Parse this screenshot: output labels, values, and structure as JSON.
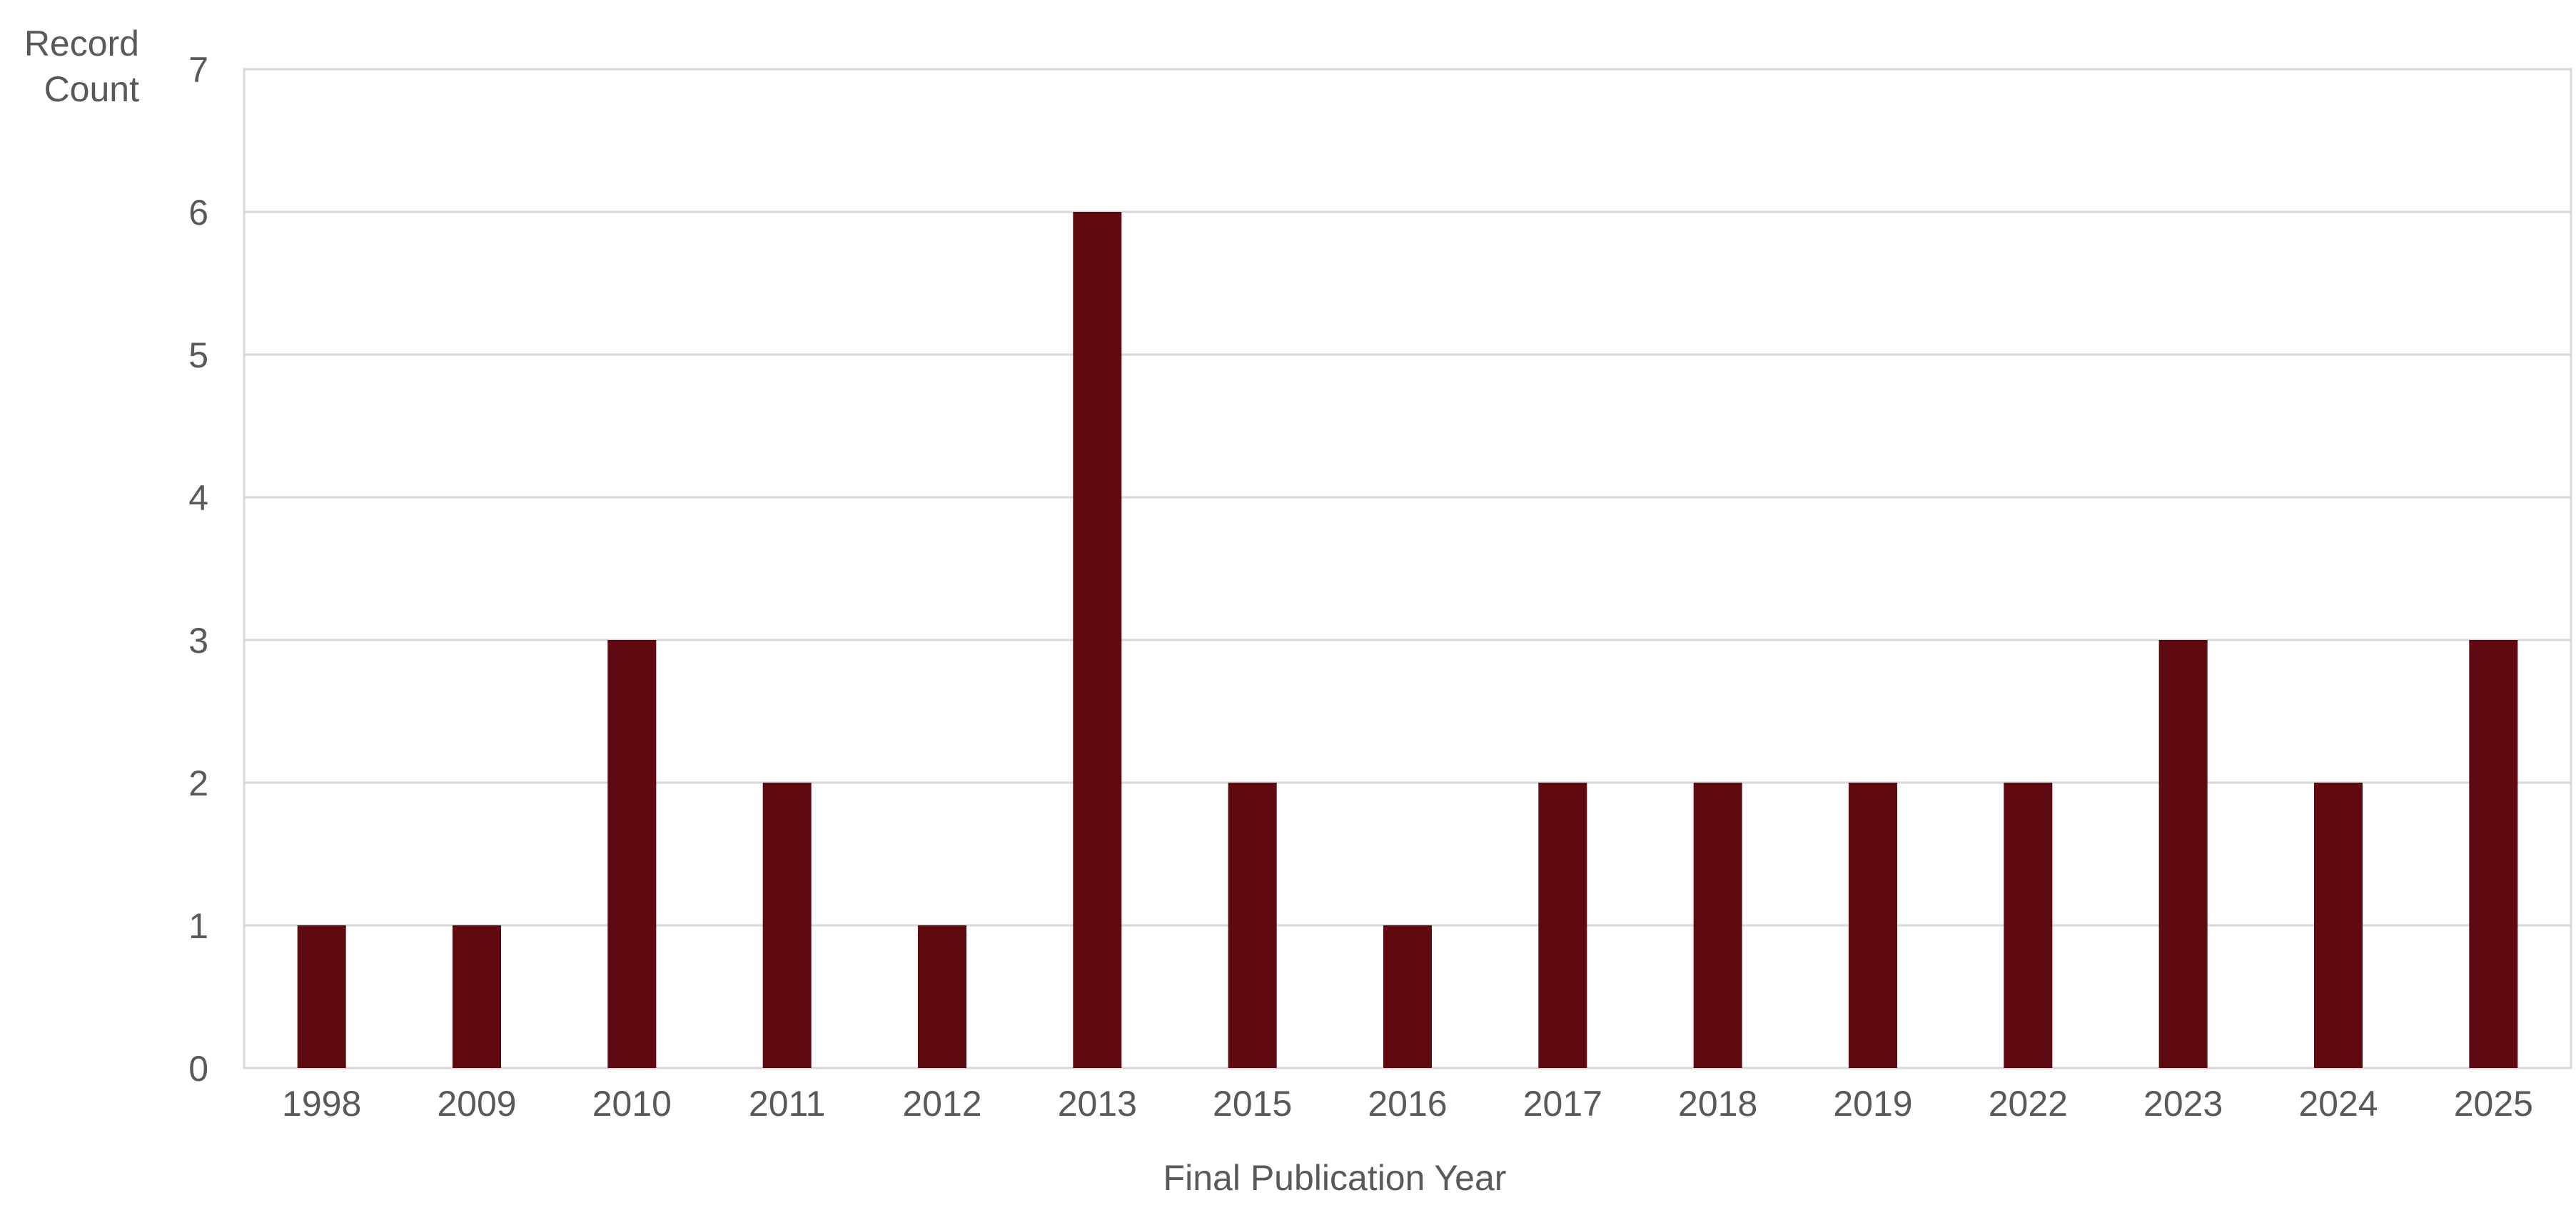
{
  "chart_data": {
    "type": "bar",
    "title": "",
    "xlabel": "Final Publication Year",
    "ylabel_lines": [
      "Record",
      "Count"
    ],
    "categories": [
      "1998",
      "2009",
      "2010",
      "2011",
      "2012",
      "2013",
      "2015",
      "2016",
      "2017",
      "2018",
      "2019",
      "2022",
      "2023",
      "2024",
      "2025"
    ],
    "values": [
      1,
      1,
      3,
      2,
      1,
      6,
      2,
      1,
      2,
      2,
      2,
      2,
      3,
      2,
      3
    ],
    "ylim": [
      0,
      7
    ],
    "yticks": [
      "0",
      "1",
      "2",
      "3",
      "4",
      "5",
      "6",
      "7"
    ],
    "grid": true,
    "legend": "none",
    "bar_color": "#5e0a10"
  }
}
